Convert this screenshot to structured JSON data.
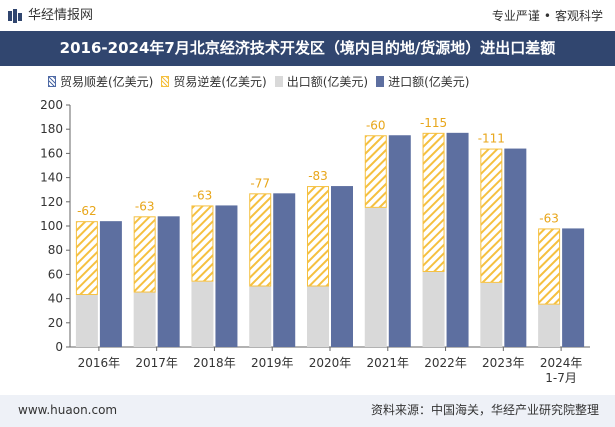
{
  "header": {
    "brand": "华经情报网",
    "tagline_left": "专业严谨",
    "tagline_dot": "•",
    "tagline_right": "客观科学"
  },
  "title": "2016-2024年7月北京经济技术开发区（境内目的地/货源地）进出口差额",
  "legend": [
    "贸易顺差(亿美元)",
    "贸易逆差(亿美元)",
    "出口额(亿美元)",
    "进口额(亿美元)"
  ],
  "footer": {
    "site": "www.huaon.com",
    "source": "资料来源：中国海关，华经产业研究院整理"
  },
  "colors": {
    "export": "#d9d9d9",
    "import": "#5d6fa0",
    "deficit": "#f5c040",
    "deficit_label": "#e8a61a",
    "header_bg": "#31466f"
  },
  "chart_data": {
    "type": "bar",
    "categories": [
      "2016年",
      "2017年",
      "2018年",
      "2019年",
      "2020年",
      "2021年",
      "2022年",
      "2023年",
      "2024年\n1-7月"
    ],
    "series": [
      {
        "name": "贸易顺差(亿美元)",
        "values": [
          0,
          0,
          0,
          0,
          0,
          0,
          0,
          0,
          0
        ]
      },
      {
        "name": "贸易逆差(亿美元)",
        "values": [
          -62,
          -63,
          -63,
          -77,
          -83,
          -60,
          -115,
          -111,
          -63
        ]
      },
      {
        "name": "出口额(亿美元)",
        "values": [
          43,
          45,
          54,
          50,
          50,
          115,
          62,
          53,
          35
        ]
      },
      {
        "name": "进口额(亿美元)",
        "values": [
          104,
          108,
          117,
          127,
          133,
          175,
          177,
          164,
          98
        ]
      }
    ],
    "ylim": [
      0,
      200
    ],
    "yticks": [
      0,
      20,
      40,
      60,
      80,
      100,
      120,
      140,
      160,
      180,
      200
    ],
    "grid": false,
    "legend_position": "top-left"
  }
}
